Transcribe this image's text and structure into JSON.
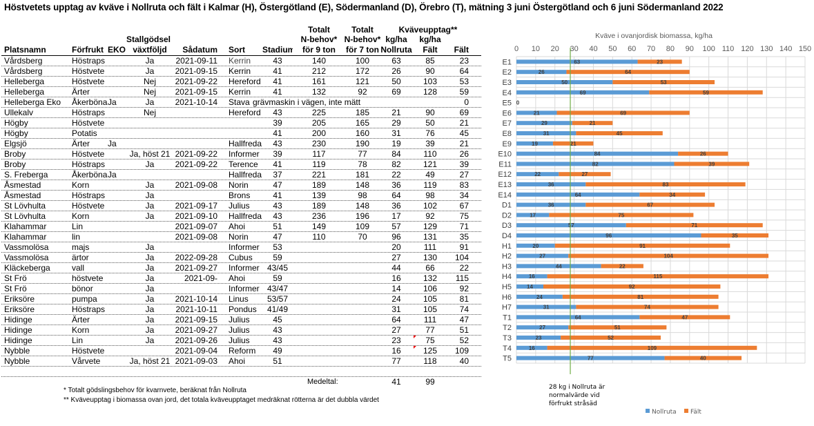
{
  "title": "Höstvetets upptag av kväve i Nollruta och fält i Kalmar (H), Östergötland (E), Södermanland (D), Örebro (T), mätning 3 juni Östergötland och 6 juni Södermanland 2022",
  "table": {
    "header_row1": {
      "n9": "Totalt",
      "n7": "Totalt",
      "kv": "Kväveupptag**"
    },
    "header_row2": {
      "stall": "Stallgödsel",
      "n9": "N-behov*",
      "n7": "N-behov*",
      "noll": "kg/ha",
      "falt_kg": "kg/ha"
    },
    "header_row3": [
      "Platsnamn",
      "Förfrukt",
      "EKO",
      "växtföljd",
      "Sådatum",
      "Sort",
      "Stadium",
      "för 9 ton",
      "för 7 ton",
      "Nollruta",
      "Fält",
      "Fält"
    ],
    "rows": [
      [
        "Vårdsberg",
        "Höstraps",
        "",
        "Ja",
        "2021-09-11",
        "Kerrin",
        "43",
        "140",
        "100",
        "63",
        "85",
        "23"
      ],
      [
        "Vårdsberg",
        "Höstvete",
        "",
        "Ja",
        "2021-09-15",
        "Kerrin",
        "41",
        "212",
        "172",
        "26",
        "90",
        "64"
      ],
      [
        "Helleberga",
        "Höstvete",
        "",
        "Nej",
        "2021-09-22",
        "Hereford",
        "41",
        "161",
        "121",
        "50",
        "103",
        "53"
      ],
      [
        "Helleberga",
        "Ärter",
        "",
        "Nej",
        "2021-09-15",
        "Kerrin",
        "41",
        "132",
        "92",
        "69",
        "128",
        "59"
      ],
      [
        "Helleberga Eko",
        "Åkerböna",
        "Ja",
        "Ja",
        "2021-10-14",
        "Stava",
        "grävmaskin i vägen, inte mätt",
        "",
        "",
        "",
        "",
        "0"
      ],
      [
        "Ullekalv",
        "Höstraps",
        "",
        "Nej",
        "",
        "Hereford",
        "43",
        "225",
        "185",
        "21",
        "90",
        "69"
      ],
      [
        "Högby",
        "Höstvete",
        "",
        "",
        "",
        "",
        "39",
        "205",
        "165",
        "29",
        "50",
        "21"
      ],
      [
        "Högby",
        "Potatis",
        "",
        "",
        "",
        "",
        "41",
        "200",
        "160",
        "31",
        "76",
        "45"
      ],
      [
        "Elgsjö",
        "Ärter",
        "Ja",
        "",
        "",
        "Hallfreda",
        "43",
        "230",
        "190",
        "19",
        "39",
        "21"
      ],
      [
        "Broby",
        "Höstvete",
        "",
        "Ja, höst 21",
        "2021-09-22",
        "Informer",
        "39",
        "117",
        "77",
        "84",
        "110",
        "26"
      ],
      [
        "Broby",
        "Höstraps",
        "",
        "Ja",
        "2021-09-22",
        "Terence",
        "41",
        "119",
        "78",
        "82",
        "121",
        "39"
      ],
      [
        "S. Freberga",
        "Åkerböna",
        "Ja",
        "",
        "",
        "Hallfreda",
        "37",
        "221",
        "181",
        "22",
        "49",
        "27"
      ],
      [
        "Åsmestad",
        "Korn",
        "",
        "Ja",
        "2021-09-08",
        "Norin",
        "47",
        "189",
        "148",
        "36",
        "119",
        "83"
      ],
      [
        "Åsmestad",
        "Höstraps",
        "",
        "Ja",
        "",
        "Brons",
        "41",
        "139",
        "98",
        "64",
        "98",
        "34"
      ],
      [
        "St Lövhulta",
        "Höstvete",
        "",
        "Ja",
        "2021-09-17",
        "Julius",
        "43",
        "189",
        "148",
        "36",
        "102",
        "67"
      ],
      [
        "St Lövhulta",
        "Korn",
        "",
        "Ja",
        "2021-09-10",
        "Hallfreda",
        "43",
        "236",
        "196",
        "17",
        "92",
        "75"
      ],
      [
        "Klahammar",
        "Lin",
        "",
        "",
        "2021-09-07",
        "Ahoi",
        "51",
        "149",
        "109",
        "57",
        "129",
        "71"
      ],
      [
        "Klahammar",
        "lin",
        "",
        "",
        "2021-09-08",
        "Norin",
        "47",
        "110",
        "70",
        "96",
        "131",
        "35"
      ],
      [
        "Vassmolösa",
        "majs",
        "",
        "Ja",
        "",
        "Informer",
        "53",
        "",
        "",
        "20",
        "111",
        "91"
      ],
      [
        "Vassmolösa",
        "ärtor",
        "",
        "Ja",
        "2022-09-28",
        "Cubus",
        "59",
        "",
        "",
        "27",
        "130",
        "104"
      ],
      [
        "Kläckeberga",
        "vall",
        "",
        "Ja",
        "2021-09-27",
        "Informer",
        "43/45",
        "",
        "",
        "44",
        "66",
        "22"
      ],
      [
        "St Frö",
        "höstvete",
        "",
        "Ja",
        "2021-09-",
        "Ahoi",
        "59",
        "",
        "",
        "16",
        "132",
        "115"
      ],
      [
        "St Frö",
        "bönor",
        "",
        "Ja",
        "",
        "Informer",
        "43/47",
        "",
        "",
        "14",
        "106",
        "92"
      ],
      [
        "Eriksöre",
        "pumpa",
        "",
        "Ja",
        "2021-10-14",
        "Linus",
        "53/57",
        "",
        "",
        "24",
        "105",
        "81"
      ],
      [
        "Eriksöre",
        "Höstraps",
        "",
        "Ja",
        "2021-10-11",
        "Pondus",
        "41/49",
        "",
        "",
        "31",
        "105",
        "74"
      ],
      [
        "Hidinge",
        "Ärter",
        "",
        "Ja",
        "2021-09-15",
        "Julius",
        "45",
        "",
        "",
        "64",
        "111",
        "47"
      ],
      [
        "Hidinge",
        "Korn",
        "",
        "Ja",
        "2021-09-27",
        "Julius",
        "43",
        "",
        "",
        "27",
        "77",
        "51"
      ],
      [
        "Hidinge",
        "Lin",
        "",
        "Ja",
        "2021-09-26",
        "Julius",
        "43",
        "",
        "",
        "23",
        "75",
        "52"
      ],
      [
        "Nybble",
        "Höstvete",
        "",
        "",
        "2021-09-04",
        "Reform",
        "49",
        "",
        "",
        "16",
        "125",
        "109"
      ],
      [
        "Nybble",
        "Vårvete",
        "",
        "Ja, höst 21",
        "2021-09-03",
        "Ahoi",
        "51",
        "",
        "",
        "77",
        "118",
        "40"
      ]
    ],
    "average": {
      "label": "Medeltal:",
      "nollruta": "41",
      "falt_kg": "99"
    },
    "footnotes": [
      "* Totalt gödslingsbehov för kvarnvete, beräknat från Nollruta",
      "** Kväveupptag i biomassa ovan jord, det totala kväveupptaget medräknat rötterna är det dubbla värdet"
    ]
  },
  "chart_data": {
    "type": "bar",
    "orientation": "horizontal",
    "stacked": true,
    "title": "Kväve i ovanjordisk biomassa, kg/ha",
    "categories": [
      "E1",
      "E2",
      "E3",
      "E4",
      "E5",
      "E6",
      "E7",
      "E8",
      "E9",
      "E10",
      "E11",
      "E12",
      "E13",
      "E14",
      "D1",
      "D2",
      "D3",
      "D4",
      "H1",
      "H2",
      "H3",
      "H4",
      "H5",
      "H6",
      "H7",
      "T1",
      "T2",
      "T3",
      "T4",
      "T5"
    ],
    "series": [
      {
        "name": "Nollruta",
        "color": "#5b9bd5",
        "values": [
          63,
          26,
          50,
          69,
          null,
          21,
          29,
          31,
          19,
          84,
          82,
          22,
          36,
          64,
          36,
          17,
          57,
          96,
          20,
          27,
          44,
          16,
          14,
          24,
          31,
          64,
          27,
          23,
          16,
          77
        ]
      },
      {
        "name": "Fält",
        "color": "#ed7d31",
        "values": [
          23,
          64,
          53,
          59,
          0,
          69,
          21,
          45,
          21,
          26,
          39,
          27,
          83,
          34,
          67,
          75,
          71,
          35,
          91,
          104,
          22,
          115,
          92,
          81,
          74,
          47,
          51,
          52,
          109,
          40
        ]
      }
    ],
    "xlim": [
      0,
      150
    ],
    "xticks": [
      0,
      10,
      20,
      30,
      40,
      50,
      60,
      70,
      80,
      90,
      100,
      110,
      120,
      130,
      140,
      150
    ],
    "axis_position": "top",
    "grid": true,
    "legend": "bottom",
    "reference_line": {
      "value": 28,
      "color": "#70ad47",
      "annotation": [
        "28 kg i Nollruta är",
        "normalvärde vid",
        "förfrukt stråsäd"
      ]
    }
  }
}
